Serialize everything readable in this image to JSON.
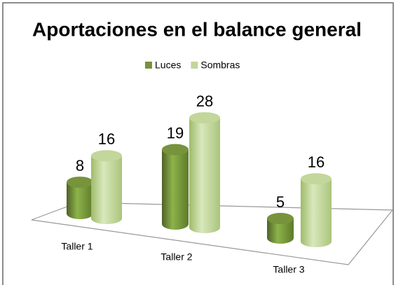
{
  "chart_data": {
    "type": "bar3d",
    "title": "Aportaciones en el balance general",
    "categories": [
      "Taller 1",
      "Taller 2",
      "Taller 3"
    ],
    "series": [
      {
        "name": "Luces",
        "color": "#77933c",
        "values": [
          8,
          19,
          5
        ]
      },
      {
        "name": "Sombras",
        "color": "#c3d69b",
        "values": [
          16,
          28,
          16
        ]
      }
    ],
    "legend": "top"
  }
}
